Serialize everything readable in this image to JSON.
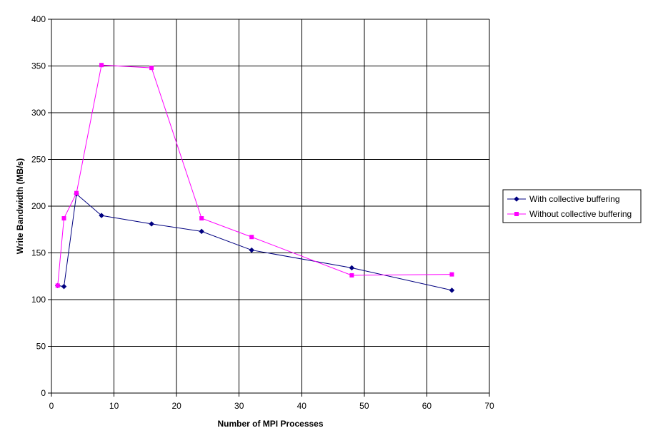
{
  "chart_data": {
    "type": "line",
    "xlabel": "Number of MPI Processes",
    "ylabel": "Write Bandwidth (MB/s)",
    "xlim": [
      0,
      70
    ],
    "ylim": [
      0,
      400
    ],
    "x_ticks": [
      0,
      10,
      20,
      30,
      40,
      50,
      60,
      70
    ],
    "y_ticks": [
      0,
      50,
      100,
      150,
      200,
      250,
      300,
      350,
      400
    ],
    "grid": true,
    "legend_position": "right",
    "series": [
      {
        "name": "With collective buffering",
        "color": "#000080",
        "marker": "diamond",
        "x": [
          1,
          2,
          4,
          8,
          16,
          24,
          32,
          48,
          64
        ],
        "values": [
          115,
          114,
          213,
          190,
          181,
          173,
          153,
          134,
          110
        ]
      },
      {
        "name": "Without collective buffering",
        "color": "#FF00FF",
        "marker": "square",
        "x": [
          1,
          2,
          4,
          8,
          16,
          24,
          32,
          48,
          64
        ],
        "values": [
          115,
          187,
          214,
          351,
          348,
          187,
          167,
          126,
          127
        ]
      }
    ]
  }
}
